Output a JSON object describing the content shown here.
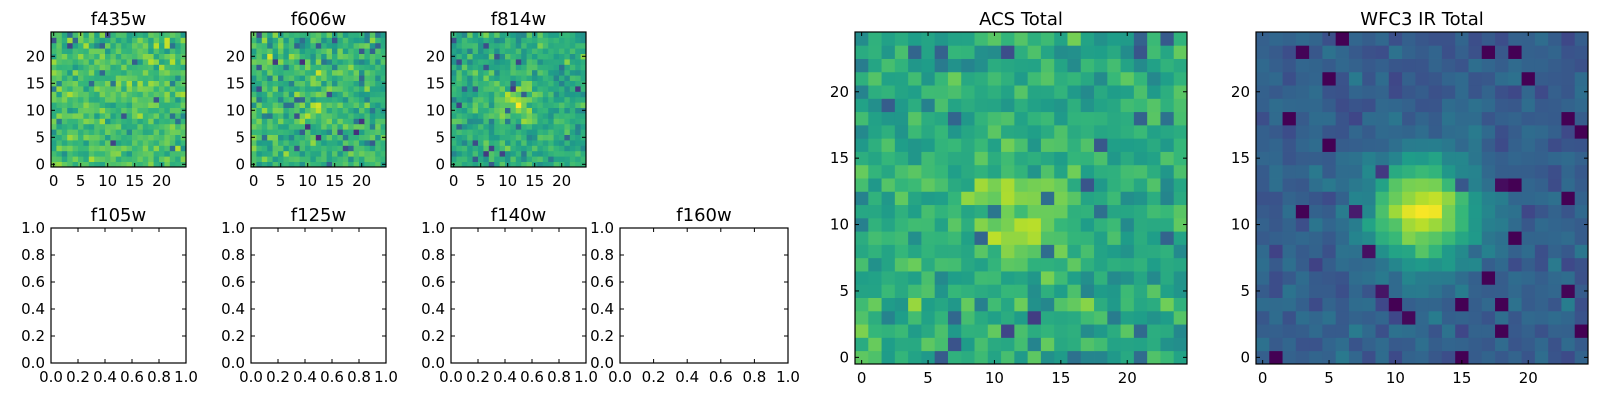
{
  "chart_data": [
    {
      "type": "heatmap",
      "title": "f435w",
      "grid_size": [
        25,
        25
      ],
      "colormap": "viridis",
      "source_brightness": "none",
      "xlim": [
        -0.5,
        24.5
      ],
      "ylim": [
        -0.5,
        24.5
      ],
      "xticks": [
        "0",
        "5",
        "10",
        "15",
        "20"
      ],
      "yticks": [
        "0",
        "5",
        "10",
        "15",
        "20"
      ]
    },
    {
      "type": "heatmap",
      "title": "f606w",
      "grid_size": [
        25,
        25
      ],
      "colormap": "viridis",
      "source_brightness": "faint",
      "xlim": [
        -0.5,
        24.5
      ],
      "ylim": [
        -0.5,
        24.5
      ],
      "xticks": [
        "0",
        "5",
        "10",
        "15",
        "20"
      ],
      "yticks": [
        "0",
        "5",
        "10",
        "15",
        "20"
      ]
    },
    {
      "type": "heatmap",
      "title": "f814w",
      "grid_size": [
        25,
        25
      ],
      "colormap": "viridis",
      "source_brightness": "moderate",
      "xlim": [
        -0.5,
        24.5
      ],
      "ylim": [
        -0.5,
        24.5
      ],
      "xticks": [
        "0",
        "5",
        "10",
        "15",
        "20"
      ],
      "yticks": [
        "0",
        "5",
        "10",
        "15",
        "20"
      ]
    },
    {
      "type": "empty",
      "title": "f105w",
      "xlim": [
        0,
        1
      ],
      "ylim": [
        0,
        1
      ],
      "xticks": [
        "0.0",
        "0.2",
        "0.4",
        "0.6",
        "0.8",
        "1.0"
      ],
      "yticks": [
        "0.0",
        "0.2",
        "0.4",
        "0.6",
        "0.8",
        "1.0"
      ]
    },
    {
      "type": "empty",
      "title": "f125w",
      "xlim": [
        0,
        1
      ],
      "ylim": [
        0,
        1
      ],
      "xticks": [
        "0.0",
        "0.2",
        "0.4",
        "0.6",
        "0.8",
        "1.0"
      ],
      "yticks": [
        "0.0",
        "0.2",
        "0.4",
        "0.6",
        "0.8",
        "1.0"
      ]
    },
    {
      "type": "empty",
      "title": "f140w",
      "xlim": [
        0,
        1
      ],
      "ylim": [
        0,
        1
      ],
      "xticks": [
        "0.0",
        "0.2",
        "0.4",
        "0.6",
        "0.8",
        "1.0"
      ],
      "yticks": [
        "0.0",
        "0.2",
        "0.4",
        "0.6",
        "0.8",
        "1.0"
      ]
    },
    {
      "type": "empty",
      "title": "f160w",
      "xlim": [
        0,
        1
      ],
      "ylim": [
        0,
        1
      ],
      "xticks": [
        "0.0",
        "0.2",
        "0.4",
        "0.6",
        "0.8",
        "1.0"
      ],
      "yticks": [
        "0.0",
        "0.2",
        "0.4",
        "0.6",
        "0.8",
        "1.0"
      ]
    },
    {
      "type": "heatmap",
      "title": "ACS Total",
      "grid_size": [
        25,
        25
      ],
      "colormap": "viridis",
      "source_brightness": "moderate",
      "xlim": [
        -0.5,
        24.5
      ],
      "ylim": [
        -0.5,
        24.5
      ],
      "xticks": [
        "0",
        "5",
        "10",
        "15",
        "20"
      ],
      "yticks": [
        "0",
        "5",
        "10",
        "15",
        "20"
      ]
    },
    {
      "type": "heatmap",
      "title": "WFC3 IR Total",
      "grid_size": [
        25,
        25
      ],
      "colormap": "viridis",
      "source_brightness": "bright",
      "xlim": [
        -0.5,
        24.5
      ],
      "ylim": [
        -0.5,
        24.5
      ],
      "xticks": [
        "0",
        "5",
        "10",
        "15",
        "20"
      ],
      "yticks": [
        "0",
        "5",
        "10",
        "15",
        "20"
      ]
    }
  ]
}
